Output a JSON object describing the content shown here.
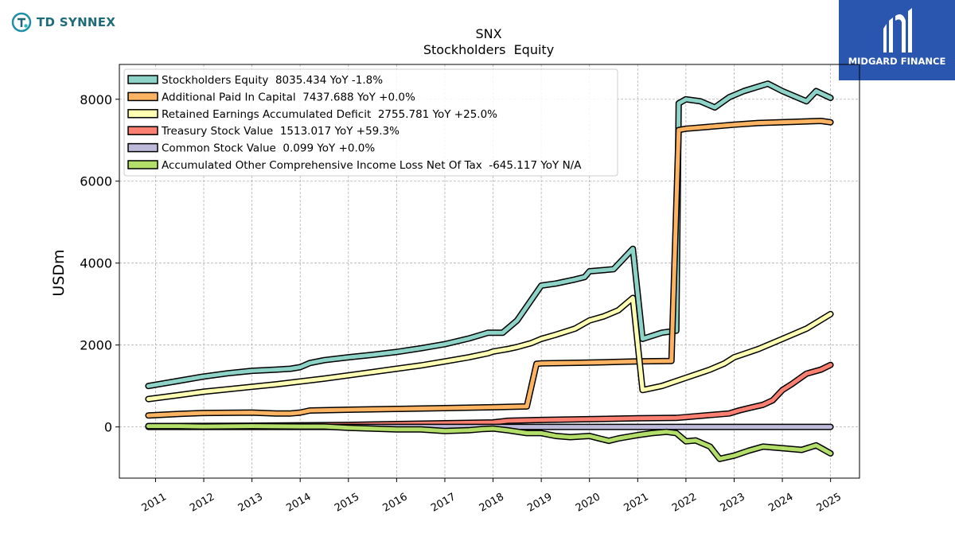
{
  "brand": {
    "left_logo_text": "TD SYNNEX",
    "right_logo_text": "MIDGARD FINANCE"
  },
  "colors": {
    "stockholders_equity": "#8dd3c7",
    "additional_paid_in_capital": "#fdb462",
    "retained_earnings": "#ffffb3",
    "treasury_stock": "#fb8072",
    "common_stock": "#bebada",
    "aoci": "#b3de69",
    "right_logo_bg": "#2a56b0",
    "left_logo_accent": "#1f6b77"
  },
  "chart_data": {
    "type": "line",
    "title": "SNX",
    "subtitle": "Stockholders  Equity",
    "xlabel": "",
    "ylabel": "USDm",
    "ylim": [
      -1250,
      8850
    ],
    "xlim": [
      2010.25,
      2025.6
    ],
    "yticks": [
      0,
      2000,
      4000,
      6000,
      8000
    ],
    "ytick_labels": [
      "0",
      "2000",
      "4000",
      "6000",
      "8000"
    ],
    "xticks": [
      2011,
      2012,
      2013,
      2014,
      2015,
      2016,
      2017,
      2018,
      2019,
      2020,
      2021,
      2022,
      2023,
      2024,
      2025
    ],
    "xtick_labels": [
      "2011",
      "2012",
      "2013",
      "2014",
      "2015",
      "2016",
      "2017",
      "2018",
      "2019",
      "2020",
      "2021",
      "2022",
      "2023",
      "2024",
      "2025"
    ],
    "grid": true,
    "legend_position": "top-left",
    "series": [
      {
        "name": "Stockholders Equity",
        "legend": "Stockholders Equity  8035.434 YoY -1.8%",
        "color_key": "stockholders_equity",
        "points": [
          [
            2010.85,
            1000
          ],
          [
            2011.5,
            1130
          ],
          [
            2012,
            1230
          ],
          [
            2012.5,
            1310
          ],
          [
            2013,
            1370
          ],
          [
            2013.5,
            1400
          ],
          [
            2013.8,
            1420
          ],
          [
            2014,
            1460
          ],
          [
            2014.2,
            1560
          ],
          [
            2014.5,
            1630
          ],
          [
            2015,
            1700
          ],
          [
            2015.5,
            1760
          ],
          [
            2016,
            1830
          ],
          [
            2016.5,
            1920
          ],
          [
            2017,
            2020
          ],
          [
            2017.5,
            2160
          ],
          [
            2017.9,
            2300
          ],
          [
            2018.2,
            2300
          ],
          [
            2018.5,
            2600
          ],
          [
            2019,
            3450
          ],
          [
            2019.3,
            3500
          ],
          [
            2019.7,
            3600
          ],
          [
            2019.9,
            3660
          ],
          [
            2020,
            3800
          ],
          [
            2020.5,
            3850
          ],
          [
            2020.9,
            4350
          ],
          [
            2021.1,
            2150
          ],
          [
            2021.5,
            2300
          ],
          [
            2021.8,
            2350
          ],
          [
            2021.85,
            7900
          ],
          [
            2022,
            8000
          ],
          [
            2022.3,
            7950
          ],
          [
            2022.6,
            7800
          ],
          [
            2022.9,
            8050
          ],
          [
            2023.2,
            8200
          ],
          [
            2023.7,
            8380
          ],
          [
            2024,
            8200
          ],
          [
            2024.3,
            8050
          ],
          [
            2024.5,
            7950
          ],
          [
            2024.7,
            8200
          ],
          [
            2025,
            8035
          ]
        ]
      },
      {
        "name": "Additional Paid In Capital",
        "legend": "Additional Paid In Capital  7437.688 YoY +0.0%",
        "color_key": "additional_paid_in_capital",
        "points": [
          [
            2010.85,
            280
          ],
          [
            2011.5,
            320
          ],
          [
            2012,
            340
          ],
          [
            2013,
            350
          ],
          [
            2013.5,
            330
          ],
          [
            2013.8,
            330
          ],
          [
            2014,
            350
          ],
          [
            2014.2,
            400
          ],
          [
            2015,
            420
          ],
          [
            2016,
            440
          ],
          [
            2017,
            460
          ],
          [
            2018,
            480
          ],
          [
            2018.7,
            500
          ],
          [
            2018.9,
            1540
          ],
          [
            2019,
            1550
          ],
          [
            2020,
            1570
          ],
          [
            2021,
            1600
          ],
          [
            2021.7,
            1610
          ],
          [
            2021.85,
            7250
          ],
          [
            2022,
            7280
          ],
          [
            2022.5,
            7330
          ],
          [
            2023,
            7380
          ],
          [
            2023.5,
            7420
          ],
          [
            2024,
            7440
          ],
          [
            2024.5,
            7460
          ],
          [
            2024.8,
            7470
          ],
          [
            2025,
            7438
          ]
        ]
      },
      {
        "name": "Retained Earnings Accumulated Deficit",
        "legend": "Retained Earnings Accumulated Deficit  2755.781 YoY +25.0%",
        "color_key": "retained_earnings",
        "points": [
          [
            2010.85,
            680
          ],
          [
            2011.5,
            780
          ],
          [
            2012,
            860
          ],
          [
            2012.5,
            920
          ],
          [
            2013,
            980
          ],
          [
            2013.5,
            1040
          ],
          [
            2014,
            1110
          ],
          [
            2014.5,
            1180
          ],
          [
            2015,
            1260
          ],
          [
            2015.5,
            1340
          ],
          [
            2016,
            1420
          ],
          [
            2016.5,
            1500
          ],
          [
            2017,
            1600
          ],
          [
            2017.5,
            1700
          ],
          [
            2017.9,
            1800
          ],
          [
            2018,
            1840
          ],
          [
            2018.3,
            1900
          ],
          [
            2018.5,
            1950
          ],
          [
            2018.8,
            2050
          ],
          [
            2019,
            2150
          ],
          [
            2019.3,
            2250
          ],
          [
            2019.7,
            2400
          ],
          [
            2020,
            2600
          ],
          [
            2020.3,
            2700
          ],
          [
            2020.6,
            2850
          ],
          [
            2020.9,
            3150
          ],
          [
            2021.1,
            900
          ],
          [
            2021.5,
            1000
          ],
          [
            2022,
            1200
          ],
          [
            2022.5,
            1400
          ],
          [
            2022.8,
            1550
          ],
          [
            2023,
            1700
          ],
          [
            2023.5,
            1900
          ],
          [
            2024,
            2150
          ],
          [
            2024.5,
            2400
          ],
          [
            2025,
            2756
          ]
        ]
      },
      {
        "name": "Treasury Stock Value",
        "legend": "Treasury Stock Value  1513.017 YoY +59.3%",
        "color_key": "treasury_stock",
        "points": [
          [
            2010.85,
            20
          ],
          [
            2012,
            25
          ],
          [
            2013,
            30
          ],
          [
            2014,
            40
          ],
          [
            2015,
            50
          ],
          [
            2016,
            70
          ],
          [
            2017,
            90
          ],
          [
            2018,
            110
          ],
          [
            2018.3,
            150
          ],
          [
            2019,
            170
          ],
          [
            2020,
            190
          ],
          [
            2021,
            210
          ],
          [
            2021.8,
            220
          ],
          [
            2022,
            240
          ],
          [
            2022.5,
            290
          ],
          [
            2022.9,
            330
          ],
          [
            2023.1,
            400
          ],
          [
            2023.3,
            460
          ],
          [
            2023.6,
            540
          ],
          [
            2023.8,
            650
          ],
          [
            2024,
            900
          ],
          [
            2024.2,
            1050
          ],
          [
            2024.5,
            1300
          ],
          [
            2024.8,
            1400
          ],
          [
            2025,
            1513
          ]
        ]
      },
      {
        "name": "Common Stock Value",
        "legend": "Common Stock Value  0.099 YoY +0.0%",
        "color_key": "common_stock",
        "points": [
          [
            2010.85,
            0.1
          ],
          [
            2025,
            0.099
          ]
        ]
      },
      {
        "name": "Accumulated Other Comprehensive Income Loss Net Of Tax",
        "legend": "Accumulated Other Comprehensive Income Loss Net Of Tax  -645.117 YoY N/A",
        "color_key": "aoci",
        "points": [
          [
            2010.85,
            20
          ],
          [
            2011.5,
            20
          ],
          [
            2012,
            10
          ],
          [
            2012.5,
            15
          ],
          [
            2013,
            20
          ],
          [
            2014,
            10
          ],
          [
            2014.5,
            10
          ],
          [
            2015,
            -20
          ],
          [
            2015.5,
            -40
          ],
          [
            2016,
            -60
          ],
          [
            2016.5,
            -60
          ],
          [
            2017,
            -100
          ],
          [
            2017.5,
            -80
          ],
          [
            2017.8,
            -50
          ],
          [
            2018,
            -40
          ],
          [
            2018.3,
            -80
          ],
          [
            2018.7,
            -150
          ],
          [
            2019,
            -150
          ],
          [
            2019.3,
            -220
          ],
          [
            2019.6,
            -250
          ],
          [
            2020,
            -220
          ],
          [
            2020.2,
            -280
          ],
          [
            2020.4,
            -340
          ],
          [
            2020.6,
            -280
          ],
          [
            2021,
            -200
          ],
          [
            2021.3,
            -150
          ],
          [
            2021.6,
            -120
          ],
          [
            2021.8,
            -150
          ],
          [
            2022,
            -350
          ],
          [
            2022.2,
            -330
          ],
          [
            2022.5,
            -480
          ],
          [
            2022.7,
            -780
          ],
          [
            2023,
            -700
          ],
          [
            2023.3,
            -580
          ],
          [
            2023.6,
            -480
          ],
          [
            2024,
            -520
          ],
          [
            2024.4,
            -560
          ],
          [
            2024.7,
            -450
          ],
          [
            2025,
            -645
          ]
        ]
      }
    ]
  }
}
